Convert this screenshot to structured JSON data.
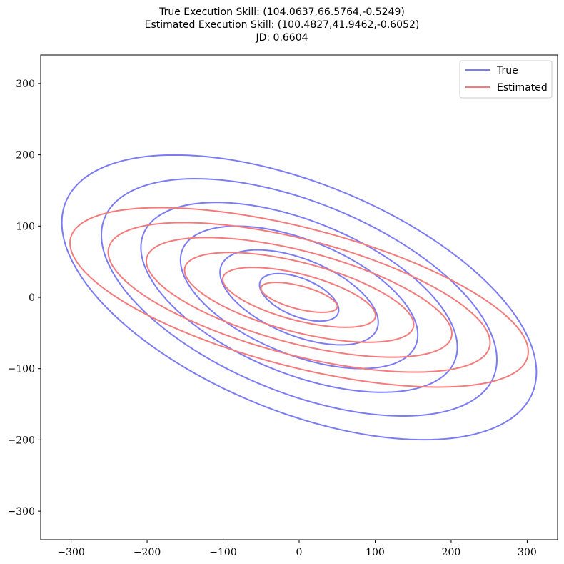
{
  "title": {
    "line1": "True Execution Skill: (104.0637,66.5764,-0.5249)",
    "line2": "Estimated Execution Skill: (100.4827,41.9462,-0.6052)",
    "line3": "JD: 0.6604"
  },
  "chart_data": {
    "type": "line",
    "xlim": [
      -340,
      340
    ],
    "ylim": [
      -340,
      340
    ],
    "xticks": [
      -300,
      -200,
      -100,
      0,
      100,
      200,
      300
    ],
    "yticks": [
      -300,
      -200,
      -100,
      0,
      100,
      200,
      300
    ],
    "xtick_labels": [
      "−300",
      "−200",
      "−100",
      "0",
      "100",
      "200",
      "300"
    ],
    "ytick_labels": [
      "−300",
      "−200",
      "−100",
      "0",
      "100",
      "200",
      "300"
    ],
    "grid": false,
    "legend_position": "top-right",
    "series": [
      {
        "name": "True",
        "color": "#7b7bf5",
        "sigma_x": 104.0637,
        "sigma_y": 66.5764,
        "rho": -0.5249,
        "scales": [
          0.5,
          1.0,
          1.5,
          2.0,
          2.5,
          3.0
        ]
      },
      {
        "name": "Estimated",
        "color": "#f57b7b",
        "sigma_x": 100.4827,
        "sigma_y": 41.9462,
        "rho": -0.6052,
        "scales": [
          0.5,
          1.0,
          1.5,
          2.0,
          2.5,
          3.0
        ]
      }
    ]
  }
}
